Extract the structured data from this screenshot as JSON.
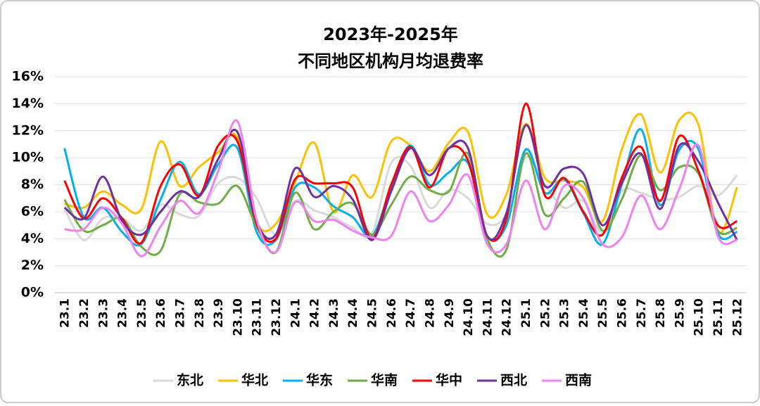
{
  "chart_data": {
    "type": "line",
    "title": [
      "2023年-2025年",
      "不同地区机构月均退费率"
    ],
    "categories": [
      "23.1",
      "23.2",
      "23.3",
      "23.4",
      "23.5",
      "23.6",
      "23.7",
      "23.8",
      "23.9",
      "23.10",
      "23.11",
      "23.12",
      "24.1",
      "24.2",
      "24.3",
      "24.4",
      "24.5",
      "24.6",
      "24.7",
      "24.8",
      "24.9",
      "24.10",
      "24.11",
      "24.12",
      "25.1",
      "25.2",
      "25.3",
      "25.4",
      "25.5",
      "25.6",
      "25.7",
      "25.8",
      "25.9",
      "25.10",
      "25.11",
      "25.12"
    ],
    "series": [
      {
        "name": "东北",
        "color": "#d9d9d9",
        "values": [
          6.2,
          3.9,
          5.5,
          5.5,
          4.6,
          6.5,
          5.8,
          5.7,
          8.1,
          8.5,
          7.0,
          4.3,
          6.8,
          6.1,
          5.6,
          4.8,
          4.4,
          9.6,
          9.4,
          6.3,
          7.6,
          7.0,
          5.1,
          5.8,
          10.0,
          8.0,
          6.3,
          6.8,
          4.5,
          7.5,
          7.4,
          6.9,
          7.1,
          7.9,
          7.2,
          8.7
        ]
      },
      {
        "name": "华北",
        "color": "#ffc000",
        "values": [
          6.6,
          6.3,
          7.5,
          6.5,
          6.2,
          11.2,
          7.9,
          9.3,
          10.4,
          11.5,
          5.2,
          5.1,
          8.2,
          11.1,
          6.0,
          8.7,
          7.1,
          11.2,
          10.9,
          9.0,
          11.1,
          11.9,
          5.8,
          7.3,
          12.5,
          8.5,
          8.3,
          7.8,
          5.3,
          10.6,
          13.2,
          8.9,
          12.8,
          12.4,
          4.5,
          7.8
        ]
      },
      {
        "name": "华东",
        "color": "#00b0f0",
        "values": [
          10.7,
          5.6,
          6.3,
          4.5,
          3.6,
          6.9,
          9.7,
          7.3,
          9.5,
          10.7,
          4.5,
          3.9,
          7.8,
          7.8,
          6.4,
          5.6,
          4.2,
          7.8,
          10.9,
          8.0,
          8.9,
          9.6,
          4.2,
          5.0,
          10.6,
          7.4,
          8.4,
          5.9,
          3.6,
          8.0,
          12.1,
          6.5,
          10.6,
          10.6,
          4.4,
          4.5
        ]
      },
      {
        "name": "华南",
        "color": "#70ad47",
        "values": [
          6.9,
          4.6,
          5.0,
          5.5,
          3.4,
          3.1,
          7.3,
          6.7,
          6.6,
          7.9,
          4.9,
          3.0,
          7.4,
          4.7,
          6.0,
          6.6,
          4.3,
          6.5,
          8.6,
          7.6,
          7.5,
          10.3,
          4.0,
          3.2,
          10.3,
          5.8,
          7.0,
          8.2,
          4.6,
          6.9,
          10.2,
          7.6,
          9.3,
          8.8,
          4.6,
          4.8
        ]
      },
      {
        "name": "华中",
        "color": "#ff0000",
        "values": [
          8.3,
          5.5,
          7.0,
          5.5,
          3.7,
          7.9,
          9.5,
          7.2,
          10.9,
          11.2,
          5.1,
          4.0,
          8.4,
          8.1,
          8.1,
          7.8,
          4.0,
          8.0,
          10.8,
          7.8,
          10.7,
          9.8,
          4.2,
          5.5,
          14.0,
          7.2,
          8.5,
          6.0,
          4.3,
          8.5,
          10.8,
          6.8,
          11.6,
          9.0,
          5.0,
          5.3
        ]
      },
      {
        "name": "西北",
        "color": "#7030a0",
        "values": [
          6.3,
          5.5,
          8.6,
          5.3,
          4.3,
          6.0,
          7.5,
          7.1,
          9.9,
          11.9,
          5.3,
          4.3,
          9.2,
          7.1,
          7.9,
          6.9,
          3.9,
          7.5,
          10.7,
          8.7,
          10.7,
          10.7,
          4.2,
          5.9,
          12.4,
          7.9,
          9.2,
          8.8,
          5.0,
          8.1,
          10.3,
          6.2,
          10.9,
          9.7,
          6.7,
          3.9
        ]
      },
      {
        "name": "西南",
        "color": "#ee82ee",
        "values": [
          4.7,
          4.7,
          6.3,
          5.1,
          2.7,
          4.9,
          6.8,
          5.9,
          9.0,
          12.7,
          5.4,
          3.0,
          6.7,
          5.3,
          5.4,
          4.6,
          4.1,
          4.2,
          7.5,
          5.3,
          6.5,
          8.7,
          3.6,
          3.6,
          8.3,
          4.7,
          7.9,
          7.0,
          3.6,
          4.1,
          7.2,
          4.7,
          7.7,
          10.9,
          4.2,
          3.9
        ]
      }
    ],
    "ylim": [
      0,
      16
    ],
    "yticks": [
      {
        "value": 0,
        "label": "0%"
      },
      {
        "value": 2,
        "label": "2%"
      },
      {
        "value": 4,
        "label": "4%"
      },
      {
        "value": 6,
        "label": "6%"
      },
      {
        "value": 8,
        "label": "8%"
      },
      {
        "value": 10,
        "label": "10%"
      },
      {
        "value": 12,
        "label": "12%"
      },
      {
        "value": 14,
        "label": "14%"
      },
      {
        "value": 16,
        "label": "16%"
      }
    ],
    "grid": true,
    "legend": "bottom"
  }
}
